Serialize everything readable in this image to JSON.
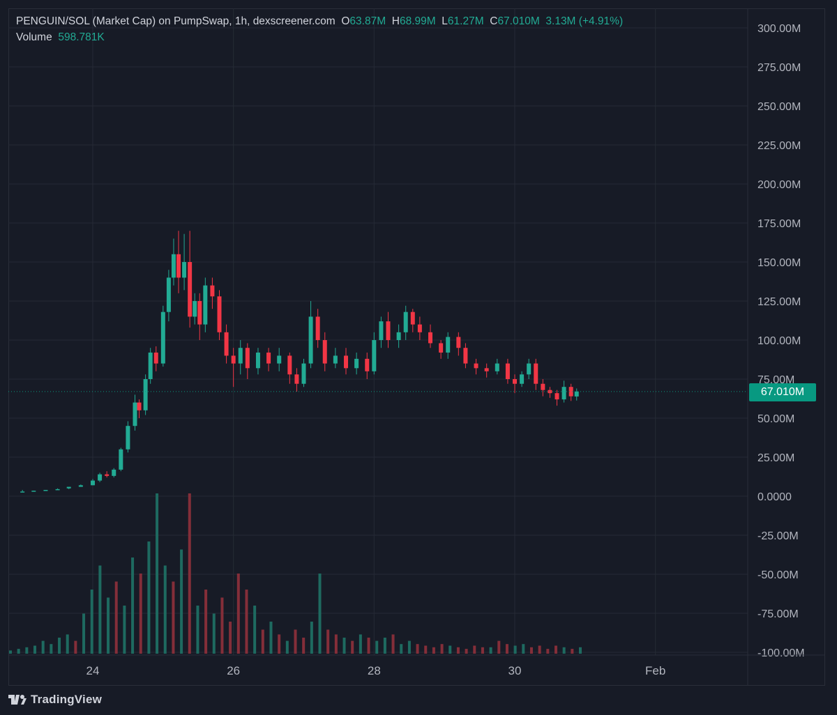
{
  "header": {
    "symbol": "PENGUIN/SOL (Market Cap) on PumpSwap, 1h, dexscreener.com",
    "o_label": "O",
    "o_value": "63.87M",
    "h_label": "H",
    "h_value": "68.99M",
    "l_label": "L",
    "l_value": "61.27M",
    "c_label": "C",
    "c_value": "67.010M",
    "change": "3.13M (+4.91%)",
    "volume_label": "Volume",
    "volume_value": "598.781K"
  },
  "brand": {
    "name": "TradingView"
  },
  "colors": {
    "up": "#22ab94",
    "down": "#f23645",
    "background": "#171b26",
    "grid": "#252a35",
    "last_price": "#089981"
  },
  "chart_data": {
    "type": "candlestick",
    "y_axis": {
      "ticks": [
        "300.00M",
        "275.00M",
        "250.00M",
        "225.00M",
        "200.00M",
        "175.00M",
        "150.00M",
        "125.00M",
        "100.00M",
        "75.00M",
        "50.00M",
        "25.00M",
        "0.0000",
        "-25.00M",
        "-50.00M",
        "-75.00M",
        "-100.00M"
      ],
      "range_millions": [
        -100,
        300
      ]
    },
    "x_axis": {
      "ticks": [
        "24",
        "26",
        "28",
        "30",
        "Feb"
      ]
    },
    "last_price": {
      "label": "67.010M",
      "value_millions": 67.01
    },
    "candles_millions": [
      [
        23.0,
        3,
        3,
        4,
        3
      ],
      [
        23.16,
        3,
        3.5,
        3.5,
        3
      ],
      [
        23.33,
        3.5,
        4,
        4,
        3.5
      ],
      [
        23.5,
        4,
        4.5,
        5,
        4
      ],
      [
        23.66,
        5,
        6,
        6,
        4.5
      ],
      [
        23.83,
        6,
        7,
        7.5,
        6
      ],
      [
        24.0,
        7,
        10,
        11,
        7
      ],
      [
        24.1,
        10,
        14,
        15,
        9
      ],
      [
        24.2,
        14,
        13,
        16,
        12
      ],
      [
        24.3,
        13,
        17,
        18,
        12
      ],
      [
        24.4,
        17,
        30,
        31,
        16
      ],
      [
        24.5,
        30,
        45,
        48,
        28
      ],
      [
        24.6,
        45,
        60,
        65,
        42
      ],
      [
        24.66,
        60,
        55,
        62,
        50
      ],
      [
        24.75,
        55,
        75,
        78,
        52
      ],
      [
        24.82,
        75,
        92,
        95,
        72
      ],
      [
        24.9,
        92,
        85,
        96,
        80
      ],
      [
        25.0,
        85,
        118,
        122,
        83
      ],
      [
        25.08,
        118,
        140,
        145,
        112
      ],
      [
        25.15,
        140,
        155,
        165,
        135
      ],
      [
        25.22,
        155,
        140,
        170,
        130
      ],
      [
        25.3,
        140,
        150,
        168,
        132
      ],
      [
        25.38,
        150,
        115,
        170,
        108
      ],
      [
        25.45,
        115,
        125,
        130,
        110
      ],
      [
        25.52,
        125,
        110,
        130,
        100
      ],
      [
        25.6,
        110,
        135,
        140,
        105
      ],
      [
        25.7,
        135,
        128,
        140,
        120
      ],
      [
        25.8,
        128,
        105,
        132,
        100
      ],
      [
        25.9,
        105,
        90,
        110,
        85
      ],
      [
        26.0,
        90,
        85,
        95,
        70
      ],
      [
        26.1,
        85,
        95,
        100,
        78
      ],
      [
        26.2,
        95,
        82,
        98,
        75
      ],
      [
        26.35,
        82,
        92,
        95,
        78
      ],
      [
        26.5,
        92,
        85,
        95,
        80
      ],
      [
        26.65,
        85,
        90,
        95,
        80
      ],
      [
        26.8,
        90,
        78,
        92,
        72
      ],
      [
        26.9,
        78,
        72,
        82,
        67
      ],
      [
        27.0,
        72,
        85,
        88,
        70
      ],
      [
        27.1,
        85,
        115,
        125,
        82
      ],
      [
        27.2,
        115,
        100,
        120,
        95
      ],
      [
        27.3,
        100,
        85,
        105,
        80
      ],
      [
        27.45,
        85,
        90,
        95,
        82
      ],
      [
        27.6,
        90,
        82,
        95,
        78
      ],
      [
        27.75,
        82,
        88,
        92,
        78
      ],
      [
        27.9,
        88,
        80,
        92,
        75
      ],
      [
        28.0,
        80,
        100,
        105,
        78
      ],
      [
        28.1,
        100,
        112,
        115,
        95
      ],
      [
        28.2,
        112,
        100,
        118,
        95
      ],
      [
        28.35,
        100,
        105,
        110,
        95
      ],
      [
        28.45,
        105,
        118,
        122,
        100
      ],
      [
        28.55,
        118,
        110,
        120,
        105
      ],
      [
        28.65,
        110,
        105,
        115,
        100
      ],
      [
        28.8,
        105,
        98,
        110,
        95
      ],
      [
        28.95,
        98,
        92,
        100,
        88
      ],
      [
        29.05,
        92,
        102,
        105,
        88
      ],
      [
        29.2,
        102,
        95,
        105,
        90
      ],
      [
        29.3,
        95,
        85,
        98,
        82
      ],
      [
        29.45,
        85,
        82,
        88,
        78
      ],
      [
        29.6,
        82,
        80,
        85,
        76
      ],
      [
        29.75,
        80,
        85,
        88,
        78
      ],
      [
        29.9,
        85,
        75,
        88,
        72
      ],
      [
        30.0,
        75,
        72,
        78,
        66
      ],
      [
        30.1,
        72,
        78,
        80,
        70
      ],
      [
        30.2,
        78,
        85,
        88,
        75
      ],
      [
        30.3,
        85,
        72,
        88,
        68
      ],
      [
        30.4,
        72,
        68,
        75,
        64
      ],
      [
        30.5,
        68,
        66,
        70,
        63
      ],
      [
        30.6,
        66,
        62,
        68,
        58
      ],
      [
        30.7,
        62,
        70,
        74,
        60
      ],
      [
        30.8,
        70,
        64,
        72,
        61
      ],
      [
        30.88,
        63.87,
        67.01,
        68.99,
        61.27
      ]
    ],
    "volume_relative": [
      0.02,
      0.03,
      0.04,
      0.05,
      0.08,
      0.06,
      0.1,
      0.12,
      0.08,
      0.25,
      0.4,
      0.55,
      0.35,
      0.45,
      0.3,
      0.6,
      0.5,
      0.7,
      1.0,
      0.55,
      0.45,
      0.65,
      1.0,
      0.3,
      0.4,
      0.25,
      0.35,
      0.2,
      0.5,
      0.4,
      0.3,
      0.15,
      0.2,
      0.12,
      0.08,
      0.15,
      0.1,
      0.2,
      0.5,
      0.15,
      0.12,
      0.1,
      0.08,
      0.12,
      0.1,
      0.08,
      0.1,
      0.12,
      0.06,
      0.08,
      0.06,
      0.05,
      0.04,
      0.06,
      0.05,
      0.04,
      0.03,
      0.05,
      0.04,
      0.04,
      0.08,
      0.06,
      0.05,
      0.06,
      0.04,
      0.05,
      0.03,
      0.05,
      0.04,
      0.03,
      0.04
    ]
  }
}
